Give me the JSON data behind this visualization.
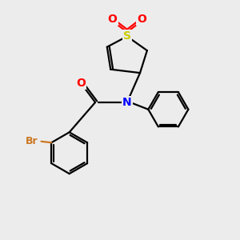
{
  "background_color": "#ececec",
  "line_color": "#000000",
  "S_color": "#cccc00",
  "N_color": "#0000ff",
  "O_color": "#ff0000",
  "Br_color": "#cc7722",
  "bond_lw": 1.6,
  "figsize": [
    3.0,
    3.0
  ],
  "dpi": 100,
  "xlim": [
    0,
    10
  ],
  "ylim": [
    0,
    10
  ],
  "font_size": 9.5
}
